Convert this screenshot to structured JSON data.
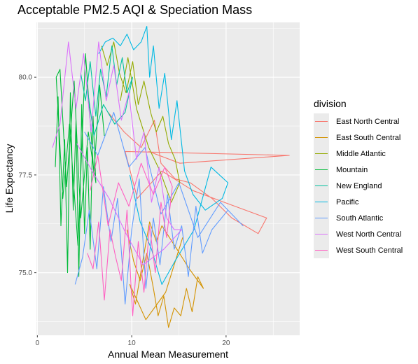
{
  "title": "Acceptable PM2.5 AQI & Speciation Mass",
  "legend": {
    "title": "division",
    "items": [
      {
        "label": "East North Central",
        "color": "#F8766D"
      },
      {
        "label": "East South Central",
        "color": "#D39200"
      },
      {
        "label": "Middle Atlantic",
        "color": "#93AA00"
      },
      {
        "label": "Mountain",
        "color": "#00BA38"
      },
      {
        "label": "New England",
        "color": "#00C19F"
      },
      {
        "label": "Pacific",
        "color": "#00B9E3"
      },
      {
        "label": "South Atlantic",
        "color": "#619CFF"
      },
      {
        "label": "West North Central",
        "color": "#DB72FB"
      },
      {
        "label": "West South Central",
        "color": "#FF61C3"
      }
    ]
  },
  "chart_data": {
    "type": "line",
    "xlabel": "Annual Mean Measurement",
    "ylabel": "Life Expectancy",
    "xlim": [
      -0.1,
      27.8
    ],
    "ylim": [
      73.4,
      81.4
    ],
    "x_ticks": [
      "0",
      "10",
      "20"
    ],
    "y_ticks": [
      "75.0",
      "77.5",
      "80.0"
    ],
    "x_tick_values": [
      0,
      10,
      20
    ],
    "y_tick_values": [
      75.0,
      77.5,
      80.0
    ],
    "grid": true,
    "legend_position": "right",
    "series": [
      {
        "name": "East North Central",
        "color": "#F8766D",
        "x": [
          7.5,
          9.2,
          11.0,
          12.4,
          13.1,
          14.6,
          16.2,
          18.5,
          20.6,
          23.4,
          24.3,
          19.8,
          16.5,
          13.2,
          10.6,
          9.3,
          26.7,
          15.1,
          11.8
        ],
        "y": [
          79.1,
          78.6,
          78.2,
          78.9,
          77.8,
          77.4,
          77.3,
          76.9,
          76.4,
          76.0,
          76.4,
          76.8,
          77.1,
          77.6,
          76.9,
          78.1,
          78.0,
          77.8,
          78.1
        ]
      },
      {
        "name": "East South Central",
        "color": "#D39200",
        "x": [
          9.5,
          10.2,
          10.9,
          11.6,
          12.3,
          12.8,
          13.4,
          13.9,
          14.5,
          15.2,
          15.8,
          16.4,
          17.0,
          17.6,
          16.1,
          14.8,
          13.2,
          12.6,
          11.9,
          11.1,
          10.4,
          9.8,
          11.5,
          13.6,
          15.4
        ],
        "y": [
          76.1,
          75.3,
          74.8,
          75.5,
          74.6,
          73.9,
          74.4,
          73.6,
          74.1,
          73.9,
          74.6,
          74.0,
          74.9,
          74.6,
          75.1,
          75.6,
          76.2,
          75.8,
          76.3,
          75.2,
          74.2,
          74.7,
          73.8,
          74.5,
          75.9
        ]
      },
      {
        "name": "Middle Atlantic",
        "color": "#93AA00",
        "x": [
          6.8,
          7.4,
          8.1,
          8.7,
          9.4,
          10.1,
          10.7,
          11.3,
          12.0,
          12.6,
          13.3,
          13.9,
          14.6,
          15.1,
          14.2,
          13.0,
          11.8,
          10.5,
          9.6,
          8.8
        ],
        "y": [
          80.8,
          80.3,
          80.9,
          80.1,
          79.6,
          80.4,
          79.3,
          79.9,
          79.1,
          78.6,
          79.0,
          78.3,
          77.9,
          77.3,
          76.8,
          77.6,
          78.2,
          79.2,
          80.5,
          79.4
        ]
      },
      {
        "name": "Mountain",
        "color": "#00BA38",
        "x": [
          1.9,
          2.2,
          2.5,
          2.9,
          3.2,
          3.5,
          3.8,
          4.1,
          4.4,
          4.7,
          5.0,
          5.3,
          5.6,
          5.9,
          6.2,
          5.4,
          4.6,
          3.9,
          3.1,
          2.4,
          2.0,
          2.7,
          3.4,
          4.3,
          5.1,
          6.0,
          6.6,
          7.1
        ],
        "y": [
          77.7,
          79.5,
          76.2,
          78.4,
          75.0,
          79.6,
          76.6,
          78.9,
          74.9,
          79.3,
          76.0,
          78.2,
          75.6,
          79.0,
          77.3,
          78.6,
          76.4,
          79.9,
          77.2,
          80.2,
          80.0,
          76.9,
          78.8,
          75.7,
          80.6,
          77.5,
          79.8,
          78.5
        ]
      },
      {
        "name": "New England",
        "color": "#00C19F",
        "x": [
          4.6,
          5.1,
          5.6,
          6.2,
          6.7,
          7.3,
          7.9,
          8.4,
          9.0,
          9.5,
          10.1,
          9.3,
          8.2,
          7.0,
          6.0,
          5.3
        ],
        "y": [
          80.1,
          79.4,
          80.4,
          79.0,
          80.2,
          79.5,
          80.8,
          79.8,
          80.5,
          79.6,
          80.0,
          79.1,
          78.8,
          79.3,
          78.5,
          79.7
        ]
      },
      {
        "name": "Pacific",
        "color": "#00B9E3",
        "x": [
          6.5,
          7.2,
          8.0,
          8.8,
          9.5,
          10.2,
          11.0,
          11.6,
          11.9,
          12.3,
          12.9,
          13.5,
          14.2,
          14.8,
          15.6,
          16.5,
          17.8,
          19.6,
          20.2,
          18.4,
          16.6,
          14.6,
          13.2,
          12.1,
          10.9,
          9.8
        ],
        "y": [
          80.6,
          80.9,
          81.0,
          80.8,
          81.1,
          80.7,
          80.9,
          81.3,
          80.0,
          80.8,
          79.2,
          80.1,
          78.4,
          79.4,
          77.6,
          77.0,
          76.6,
          76.9,
          77.3,
          77.7,
          76.1,
          75.3,
          74.7,
          75.6,
          76.3,
          77.5
        ]
      },
      {
        "name": "South Atlantic",
        "color": "#619CFF",
        "x": [
          4.0,
          4.8,
          5.5,
          6.3,
          7.0,
          7.8,
          8.5,
          9.3,
          10.0,
          10.8,
          11.5,
          12.3,
          13.0,
          13.8,
          14.5,
          15.3,
          16.0,
          16.8,
          17.5,
          18.5,
          20.2,
          21.8,
          19.4,
          17.0,
          15.0,
          13.1,
          11.4,
          9.7,
          8.1,
          6.4,
          5.0
        ],
        "y": [
          74.7,
          75.4,
          76.6,
          75.1,
          77.2,
          75.8,
          76.9,
          74.2,
          76.1,
          77.4,
          74.6,
          76.4,
          75.2,
          77.0,
          75.6,
          76.2,
          74.9,
          76.7,
          75.5,
          76.1,
          76.6,
          76.2,
          76.8,
          75.9,
          77.3,
          76.5,
          78.2,
          77.7,
          79.1,
          78.0,
          78.6
        ]
      },
      {
        "name": "West North Central",
        "color": "#DB72FB",
        "x": [
          1.6,
          2.4,
          3.3,
          4.1,
          4.9,
          5.7,
          6.5,
          7.3,
          8.1,
          8.9,
          9.7,
          10.5,
          11.3,
          12.1,
          12.9,
          13.7,
          14.5,
          15.3,
          13.4,
          11.2,
          9.4,
          7.6,
          5.8,
          4.2
        ],
        "y": [
          78.2,
          78.8,
          80.9,
          79.2,
          80.6,
          78.6,
          80.9,
          79.4,
          80.3,
          78.9,
          79.6,
          77.9,
          78.6,
          76.8,
          77.7,
          76.4,
          76.1,
          76.1,
          75.6,
          75.2,
          76.0,
          76.9,
          77.6,
          78.3
        ]
      },
      {
        "name": "West South Central",
        "color": "#FF61C3",
        "x": [
          5.3,
          5.9,
          6.5,
          7.1,
          7.7,
          8.3,
          8.9,
          9.5,
          10.1,
          10.7,
          11.3,
          11.9,
          12.5,
          13.1,
          13.7,
          14.3,
          13.5,
          12.3,
          11.0,
          9.7,
          8.6,
          7.5,
          6.4,
          5.6
        ],
        "y": [
          75.5,
          75.1,
          76.3,
          74.3,
          76.1,
          75.4,
          74.8,
          76.6,
          73.9,
          75.8,
          74.5,
          76.2,
          75.0,
          76.8,
          75.9,
          77.2,
          77.7,
          77.0,
          77.8,
          76.7,
          77.3,
          76.2,
          78.0,
          77.1
        ]
      }
    ]
  }
}
